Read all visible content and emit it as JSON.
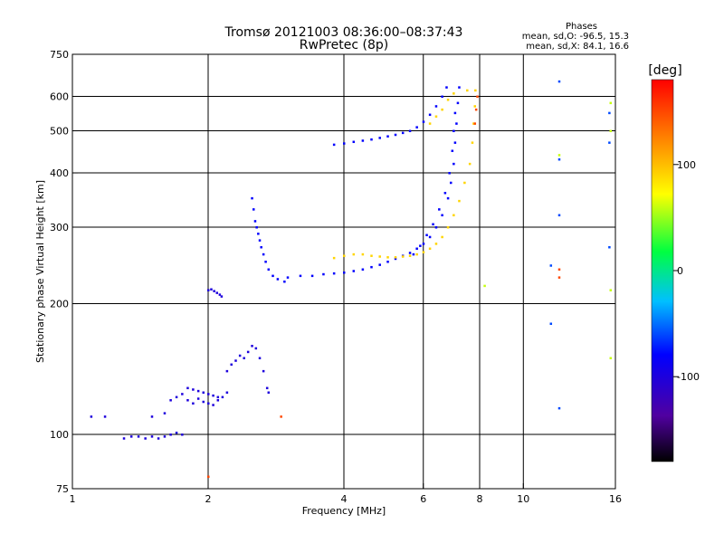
{
  "header": {
    "title": "Tromsø 20121003 08:36:00–08:37:43",
    "subtitle": "RwPretec (8p)"
  },
  "phases": {
    "label": "Phases",
    "line_o": "mean, sd,O: -96.5, 15.3",
    "line_x": "mean, sd,X:  84.1, 16.6"
  },
  "colorbar": {
    "label": "[deg]",
    "ticks": [
      {
        "value": 100,
        "label": "100"
      },
      {
        "value": 0,
        "label": "0"
      },
      {
        "value": -100,
        "label": "-100"
      }
    ],
    "range": [
      -180,
      180
    ]
  },
  "chart_data": {
    "type": "scatter",
    "xlabel": "Frequency [MHz]",
    "ylabel": "Stationary phase Virtual Height [km]",
    "xscale": "log",
    "yscale": "log",
    "xlim": [
      1,
      16
    ],
    "ylim": [
      75,
      750
    ],
    "xticks": [
      {
        "value": 1,
        "label": "1"
      },
      {
        "value": 2,
        "label": "2"
      },
      {
        "value": 4,
        "label": "4"
      },
      {
        "value": 6,
        "label": "6"
      },
      {
        "value": 8,
        "label": "8"
      },
      {
        "value": 10,
        "label": "10"
      },
      {
        "value": 16,
        "label": "16"
      }
    ],
    "yticks": [
      {
        "value": 75,
        "label": "75"
      },
      {
        "value": 100,
        "label": "100"
      },
      {
        "value": 200,
        "label": "200"
      },
      {
        "value": 300,
        "label": "300"
      },
      {
        "value": 400,
        "label": "400"
      },
      {
        "value": 500,
        "label": "500"
      },
      {
        "value": 600,
        "label": "600"
      },
      {
        "value": 750,
        "label": "750"
      }
    ],
    "xgrid": [
      2,
      4,
      6,
      8,
      10
    ],
    "ygrid": [
      100,
      200,
      300,
      400,
      500,
      600
    ],
    "series": [
      {
        "color_phase": -100,
        "points": [
          [
            1.1,
            110
          ],
          [
            1.18,
            110
          ],
          [
            1.3,
            98
          ],
          [
            1.35,
            99
          ],
          [
            1.4,
            99
          ],
          [
            1.45,
            98
          ],
          [
            1.5,
            99
          ],
          [
            1.55,
            98
          ],
          [
            1.6,
            99
          ],
          [
            1.65,
            100
          ],
          [
            1.7,
            101
          ],
          [
            1.75,
            100
          ],
          [
            1.5,
            110
          ],
          [
            1.6,
            112
          ],
          [
            1.65,
            120
          ],
          [
            1.7,
            122
          ],
          [
            1.75,
            124
          ],
          [
            1.8,
            128
          ],
          [
            1.85,
            127
          ],
          [
            1.9,
            126
          ],
          [
            1.95,
            125
          ],
          [
            2.0,
            124
          ],
          [
            2.05,
            123
          ],
          [
            2.1,
            122
          ],
          [
            1.8,
            120
          ],
          [
            1.85,
            118
          ],
          [
            1.9,
            121
          ],
          [
            1.95,
            119
          ],
          [
            2.0,
            118
          ],
          [
            2.05,
            117
          ],
          [
            2.1,
            120
          ],
          [
            2.15,
            122
          ],
          [
            2.2,
            125
          ],
          [
            2.2,
            140
          ],
          [
            2.25,
            145
          ],
          [
            2.3,
            148
          ],
          [
            2.35,
            152
          ],
          [
            2.4,
            150
          ],
          [
            2.45,
            155
          ],
          [
            2.5,
            160
          ],
          [
            2.55,
            158
          ],
          [
            2.6,
            150
          ],
          [
            2.65,
            140
          ],
          [
            2.7,
            128
          ],
          [
            2.72,
            125
          ],
          [
            2.0,
            215
          ],
          [
            2.03,
            216
          ],
          [
            2.06,
            214
          ],
          [
            2.09,
            212
          ],
          [
            2.12,
            210
          ],
          [
            2.14,
            208
          ]
        ]
      },
      {
        "color_phase": -80,
        "points": [
          [
            2.5,
            350
          ],
          [
            2.52,
            330
          ],
          [
            2.54,
            310
          ],
          [
            2.56,
            300
          ],
          [
            2.58,
            290
          ],
          [
            2.6,
            280
          ],
          [
            2.62,
            270
          ],
          [
            2.65,
            260
          ],
          [
            2.68,
            250
          ],
          [
            2.72,
            240
          ],
          [
            2.78,
            232
          ],
          [
            2.85,
            228
          ],
          [
            2.95,
            225
          ],
          [
            3.0,
            230
          ],
          [
            3.2,
            232
          ],
          [
            3.4,
            232
          ],
          [
            3.6,
            234
          ],
          [
            3.8,
            235
          ],
          [
            4.0,
            236
          ],
          [
            4.2,
            238
          ],
          [
            4.4,
            240
          ],
          [
            4.6,
            243
          ],
          [
            4.8,
            246
          ],
          [
            5.0,
            250
          ],
          [
            5.2,
            254
          ],
          [
            5.4,
            258
          ],
          [
            5.6,
            262
          ],
          [
            5.8,
            268
          ],
          [
            6.0,
            275
          ],
          [
            6.2,
            285
          ],
          [
            6.4,
            300
          ],
          [
            6.6,
            320
          ],
          [
            6.8,
            350
          ],
          [
            6.9,
            380
          ],
          [
            7.0,
            420
          ],
          [
            7.05,
            470
          ],
          [
            7.1,
            520
          ],
          [
            7.15,
            580
          ],
          [
            7.2,
            630
          ],
          [
            5.7,
            260
          ],
          [
            5.9,
            272
          ],
          [
            6.1,
            288
          ],
          [
            6.3,
            305
          ],
          [
            6.5,
            330
          ],
          [
            6.7,
            360
          ],
          [
            6.85,
            400
          ],
          [
            6.95,
            450
          ],
          [
            7.0,
            500
          ],
          [
            7.05,
            550
          ],
          [
            3.8,
            465
          ],
          [
            4.0,
            468
          ],
          [
            4.2,
            472
          ],
          [
            4.4,
            475
          ],
          [
            4.6,
            478
          ],
          [
            4.8,
            482
          ],
          [
            5.0,
            486
          ],
          [
            5.2,
            490
          ],
          [
            5.4,
            495
          ],
          [
            5.6,
            500
          ],
          [
            5.8,
            510
          ],
          [
            6.0,
            525
          ],
          [
            6.2,
            545
          ],
          [
            6.4,
            570
          ],
          [
            6.6,
            600
          ],
          [
            6.75,
            630
          ]
        ]
      },
      {
        "color_phase": 90,
        "points": [
          [
            3.8,
            255
          ],
          [
            4.0,
            258
          ],
          [
            4.2,
            260
          ],
          [
            4.4,
            260
          ],
          [
            4.6,
            258
          ],
          [
            4.8,
            257
          ],
          [
            5.0,
            256
          ],
          [
            5.2,
            256
          ],
          [
            5.4,
            257
          ],
          [
            5.6,
            258
          ],
          [
            5.8,
            260
          ],
          [
            6.0,
            263
          ],
          [
            6.2,
            268
          ],
          [
            6.4,
            275
          ],
          [
            6.6,
            285
          ],
          [
            6.8,
            300
          ],
          [
            7.0,
            320
          ],
          [
            7.2,
            345
          ],
          [
            7.4,
            380
          ],
          [
            7.6,
            420
          ],
          [
            7.7,
            470
          ],
          [
            7.75,
            520
          ],
          [
            7.8,
            570
          ],
          [
            7.82,
            620
          ],
          [
            6.2,
            520
          ],
          [
            6.4,
            540
          ],
          [
            6.6,
            560
          ],
          [
            6.8,
            590
          ],
          [
            7.0,
            610
          ],
          [
            7.5,
            620
          ]
        ]
      },
      {
        "color_phase": 150,
        "points": [
          [
            7.8,
            520
          ],
          [
            7.85,
            560
          ],
          [
            7.9,
            600
          ],
          [
            2.9,
            110
          ],
          [
            2.0,
            80
          ],
          [
            12.0,
            230
          ],
          [
            12.0,
            240
          ]
        ]
      },
      {
        "color_phase": -60,
        "points": [
          [
            12.0,
            650
          ],
          [
            11.5,
            180
          ],
          [
            11.5,
            245
          ],
          [
            12.0,
            430
          ],
          [
            15.5,
            550
          ],
          [
            15.5,
            470
          ],
          [
            15.5,
            270
          ],
          [
            12.0,
            320
          ],
          [
            12.0,
            115
          ]
        ]
      },
      {
        "color_phase": 60,
        "points": [
          [
            12.0,
            440
          ],
          [
            15.6,
            580
          ],
          [
            15.6,
            500
          ],
          [
            15.6,
            150
          ],
          [
            15.6,
            215
          ],
          [
            8.2,
            220
          ]
        ]
      }
    ]
  }
}
